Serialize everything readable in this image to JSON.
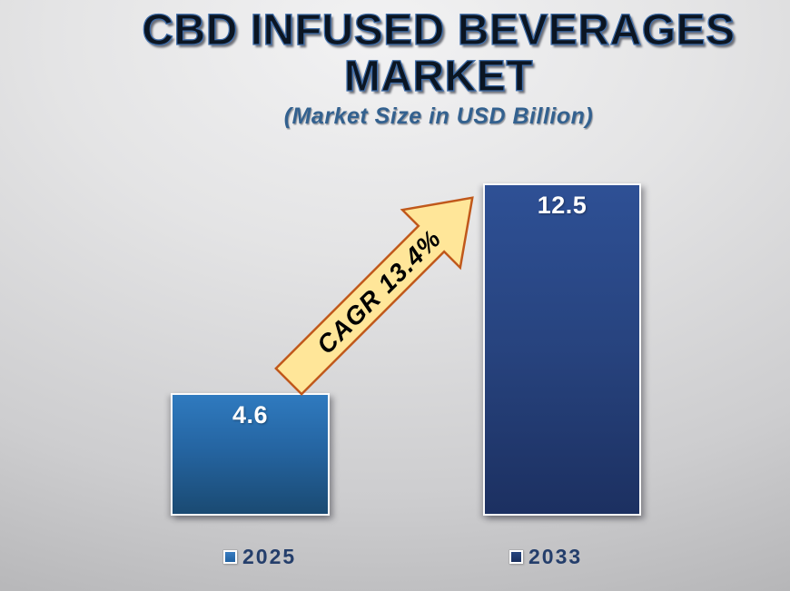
{
  "header": {
    "title_lines": [
      "CBD INFUSED BEVERAGES",
      "MARKET"
    ],
    "subtitle": "(Market Size in USD Billion)"
  },
  "chart_data": {
    "type": "bar",
    "title": "CBD INFUSED BEVERAGES MARKET",
    "subtitle": "(Market Size in USD Billion)",
    "categories": [
      "2025",
      "2033"
    ],
    "values": [
      4.6,
      12.5
    ],
    "ylabel": "Market Size (USD Billion)",
    "ylim": [
      0,
      12.5
    ],
    "grid": false,
    "axes_visible": false,
    "legend_position": "bottom",
    "annotation": "CAGR 13.4%",
    "colors": {
      "bar_2025_top": "#2F7ABF",
      "bar_2025_bottom": "#1A4A72",
      "bar_2033_top": "#2E5095",
      "bar_2033_bottom": "#1C3061",
      "arrow_fill": "#FFE699",
      "arrow_stroke": "#C0581B",
      "title_text": "#0B1522",
      "title_outline": "#3E6CA8",
      "subtitle_text": "#33618F",
      "legend_text": "#243E6B",
      "value_label_text": "#FFFFFF"
    }
  },
  "legend": {
    "items": [
      {
        "label": "2025",
        "color": "#2E75B6"
      },
      {
        "label": "2033",
        "color": "#1F3864"
      }
    ]
  }
}
